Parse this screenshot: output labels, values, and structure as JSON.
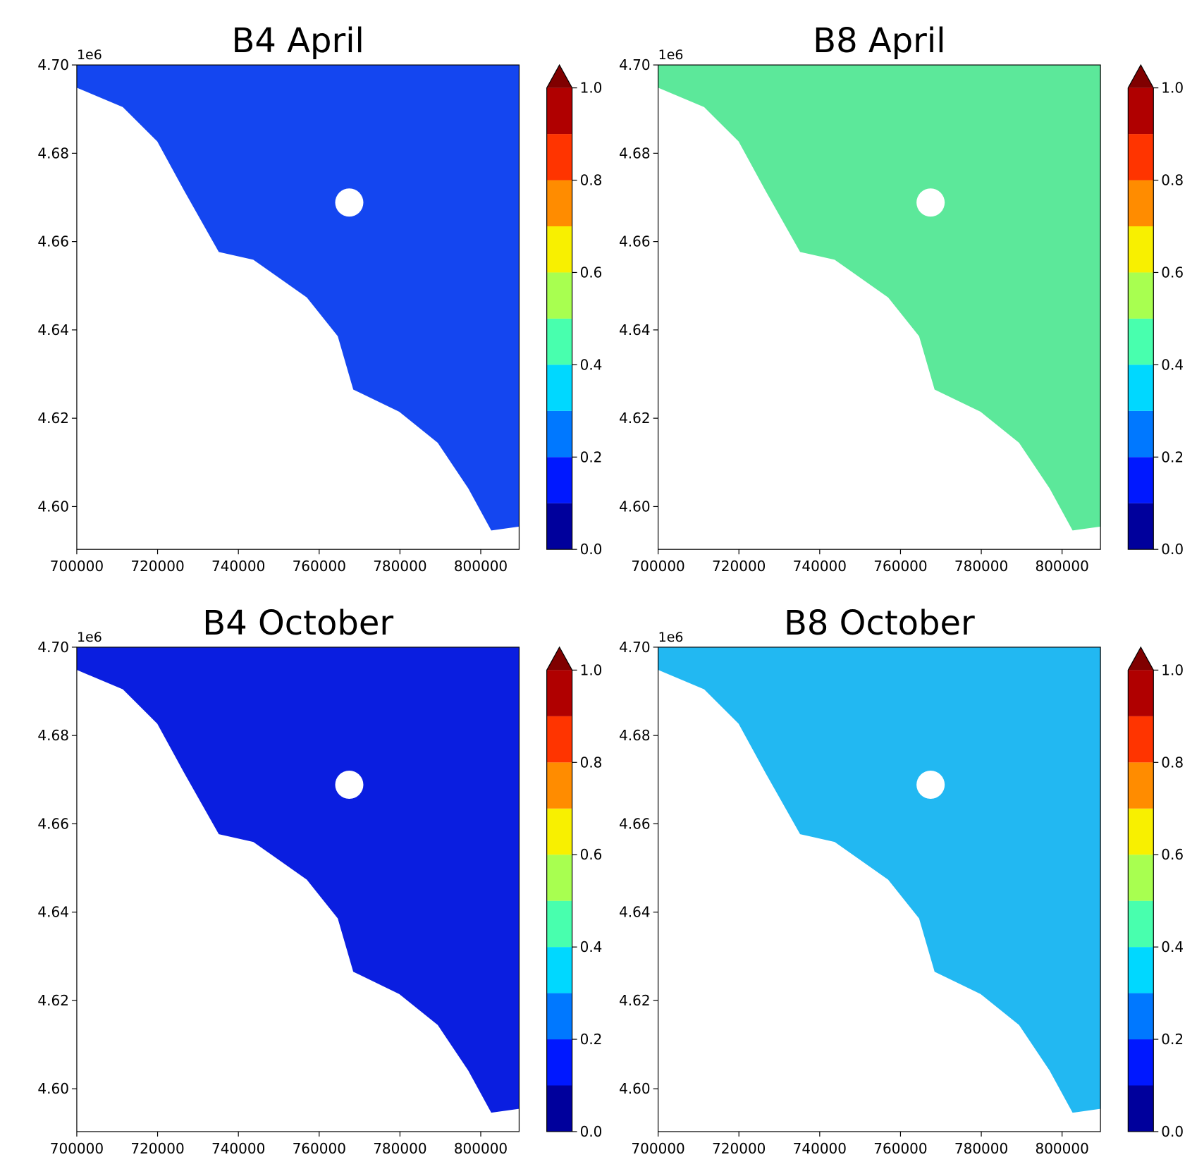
{
  "chart_data": [
    {
      "type": "raster",
      "title": "B4 April",
      "color": "#1446f0",
      "xlim": [
        700000,
        809500
      ],
      "ylim": [
        4.5903,
        4.7
      ],
      "xticks": [
        700000,
        720000,
        740000,
        760000,
        780000,
        800000
      ],
      "yticks": [
        {
          "value": 4.6,
          "label": "4.60"
        },
        {
          "value": 4.62,
          "label": "4.62"
        },
        {
          "value": 4.64,
          "label": "4.64"
        },
        {
          "value": 4.66,
          "label": "4.66"
        },
        {
          "value": 4.68,
          "label": "4.68"
        },
        {
          "value": 4.7,
          "label": "4.70"
        }
      ],
      "y_offset_label": "1e6",
      "colorbar": {
        "levels": [
          0,
          0.1,
          0.2,
          0.3,
          0.4,
          0.5,
          0.6,
          0.7,
          0.8,
          0.9,
          1.0
        ],
        "colors": [
          "#00009c",
          "#0018ff",
          "#0078ff",
          "#00d8ff",
          "#48ffae",
          "#a8ff50",
          "#f8f000",
          "#ff8c00",
          "#ff3400",
          "#b00000"
        ],
        "extend_color": "#800000",
        "ticks": [
          {
            "value": 0,
            "label": "0.0"
          },
          {
            "value": 0.2,
            "label": "0.2"
          },
          {
            "value": 0.4,
            "label": "0.4"
          },
          {
            "value": 0.6,
            "label": "0.6"
          },
          {
            "value": 0.8,
            "label": "0.8"
          },
          {
            "value": 1.0,
            "label": "1.0"
          }
        ]
      }
    },
    {
      "type": "raster",
      "title": "B8 April",
      "color": "#5ce89a",
      "xlim": [
        700000,
        809500
      ],
      "ylim": [
        4.5903,
        4.7
      ],
      "xticks": [
        700000,
        720000,
        740000,
        760000,
        780000,
        800000
      ],
      "yticks": [
        {
          "value": 4.6,
          "label": "4.60"
        },
        {
          "value": 4.62,
          "label": "4.62"
        },
        {
          "value": 4.64,
          "label": "4.64"
        },
        {
          "value": 4.66,
          "label": "4.66"
        },
        {
          "value": 4.68,
          "label": "4.68"
        },
        {
          "value": 4.7,
          "label": "4.70"
        }
      ],
      "y_offset_label": "1e6",
      "colorbar": {
        "levels": [
          0,
          0.1,
          0.2,
          0.3,
          0.4,
          0.5,
          0.6,
          0.7,
          0.8,
          0.9,
          1.0
        ],
        "colors": [
          "#00009c",
          "#0018ff",
          "#0078ff",
          "#00d8ff",
          "#48ffae",
          "#a8ff50",
          "#f8f000",
          "#ff8c00",
          "#ff3400",
          "#b00000"
        ],
        "extend_color": "#800000",
        "ticks": [
          {
            "value": 0,
            "label": "0.0"
          },
          {
            "value": 0.2,
            "label": "0.2"
          },
          {
            "value": 0.4,
            "label": "0.4"
          },
          {
            "value": 0.6,
            "label": "0.6"
          },
          {
            "value": 0.8,
            "label": "0.8"
          },
          {
            "value": 1.0,
            "label": "1.0"
          }
        ]
      }
    },
    {
      "type": "raster",
      "title": "B4 October",
      "color": "#0a1ee0",
      "xlim": [
        700000,
        809500
      ],
      "ylim": [
        4.5903,
        4.7
      ],
      "xticks": [
        700000,
        720000,
        740000,
        760000,
        780000,
        800000
      ],
      "yticks": [
        {
          "value": 4.6,
          "label": "4.60"
        },
        {
          "value": 4.62,
          "label": "4.62"
        },
        {
          "value": 4.64,
          "label": "4.64"
        },
        {
          "value": 4.66,
          "label": "4.66"
        },
        {
          "value": 4.68,
          "label": "4.68"
        },
        {
          "value": 4.7,
          "label": "4.70"
        }
      ],
      "y_offset_label": "1e6",
      "colorbar": {
        "levels": [
          0,
          0.1,
          0.2,
          0.3,
          0.4,
          0.5,
          0.6,
          0.7,
          0.8,
          0.9,
          1.0
        ],
        "colors": [
          "#00009c",
          "#0018ff",
          "#0078ff",
          "#00d8ff",
          "#48ffae",
          "#a8ff50",
          "#f8f000",
          "#ff8c00",
          "#ff3400",
          "#b00000"
        ],
        "extend_color": "#800000",
        "ticks": [
          {
            "value": 0,
            "label": "0.0"
          },
          {
            "value": 0.2,
            "label": "0.2"
          },
          {
            "value": 0.4,
            "label": "0.4"
          },
          {
            "value": 0.6,
            "label": "0.6"
          },
          {
            "value": 0.8,
            "label": "0.8"
          },
          {
            "value": 1.0,
            "label": "1.0"
          }
        ]
      }
    },
    {
      "type": "raster",
      "title": "B8 October",
      "color": "#22b8f2",
      "xlim": [
        700000,
        809500
      ],
      "ylim": [
        4.5903,
        4.7
      ],
      "xticks": [
        700000,
        720000,
        740000,
        760000,
        780000,
        800000
      ],
      "yticks": [
        {
          "value": 4.6,
          "label": "4.60"
        },
        {
          "value": 4.62,
          "label": "4.62"
        },
        {
          "value": 4.64,
          "label": "4.64"
        },
        {
          "value": 4.66,
          "label": "4.66"
        },
        {
          "value": 4.68,
          "label": "4.68"
        },
        {
          "value": 4.7,
          "label": "4.70"
        }
      ],
      "y_offset_label": "1e6",
      "colorbar": {
        "levels": [
          0,
          0.1,
          0.2,
          0.3,
          0.4,
          0.5,
          0.6,
          0.7,
          0.8,
          0.9,
          1.0
        ],
        "colors": [
          "#00009c",
          "#0018ff",
          "#0078ff",
          "#00d8ff",
          "#48ffae",
          "#a8ff50",
          "#f8f000",
          "#ff8c00",
          "#ff3400",
          "#b00000"
        ],
        "extend_color": "#800000",
        "ticks": [
          {
            "value": 0,
            "label": "0.0"
          },
          {
            "value": 0.2,
            "label": "0.2"
          },
          {
            "value": 0.4,
            "label": "0.4"
          },
          {
            "value": 0.6,
            "label": "0.6"
          },
          {
            "value": 0.8,
            "label": "0.8"
          },
          {
            "value": 1.0,
            "label": "1.0"
          }
        ]
      }
    }
  ]
}
